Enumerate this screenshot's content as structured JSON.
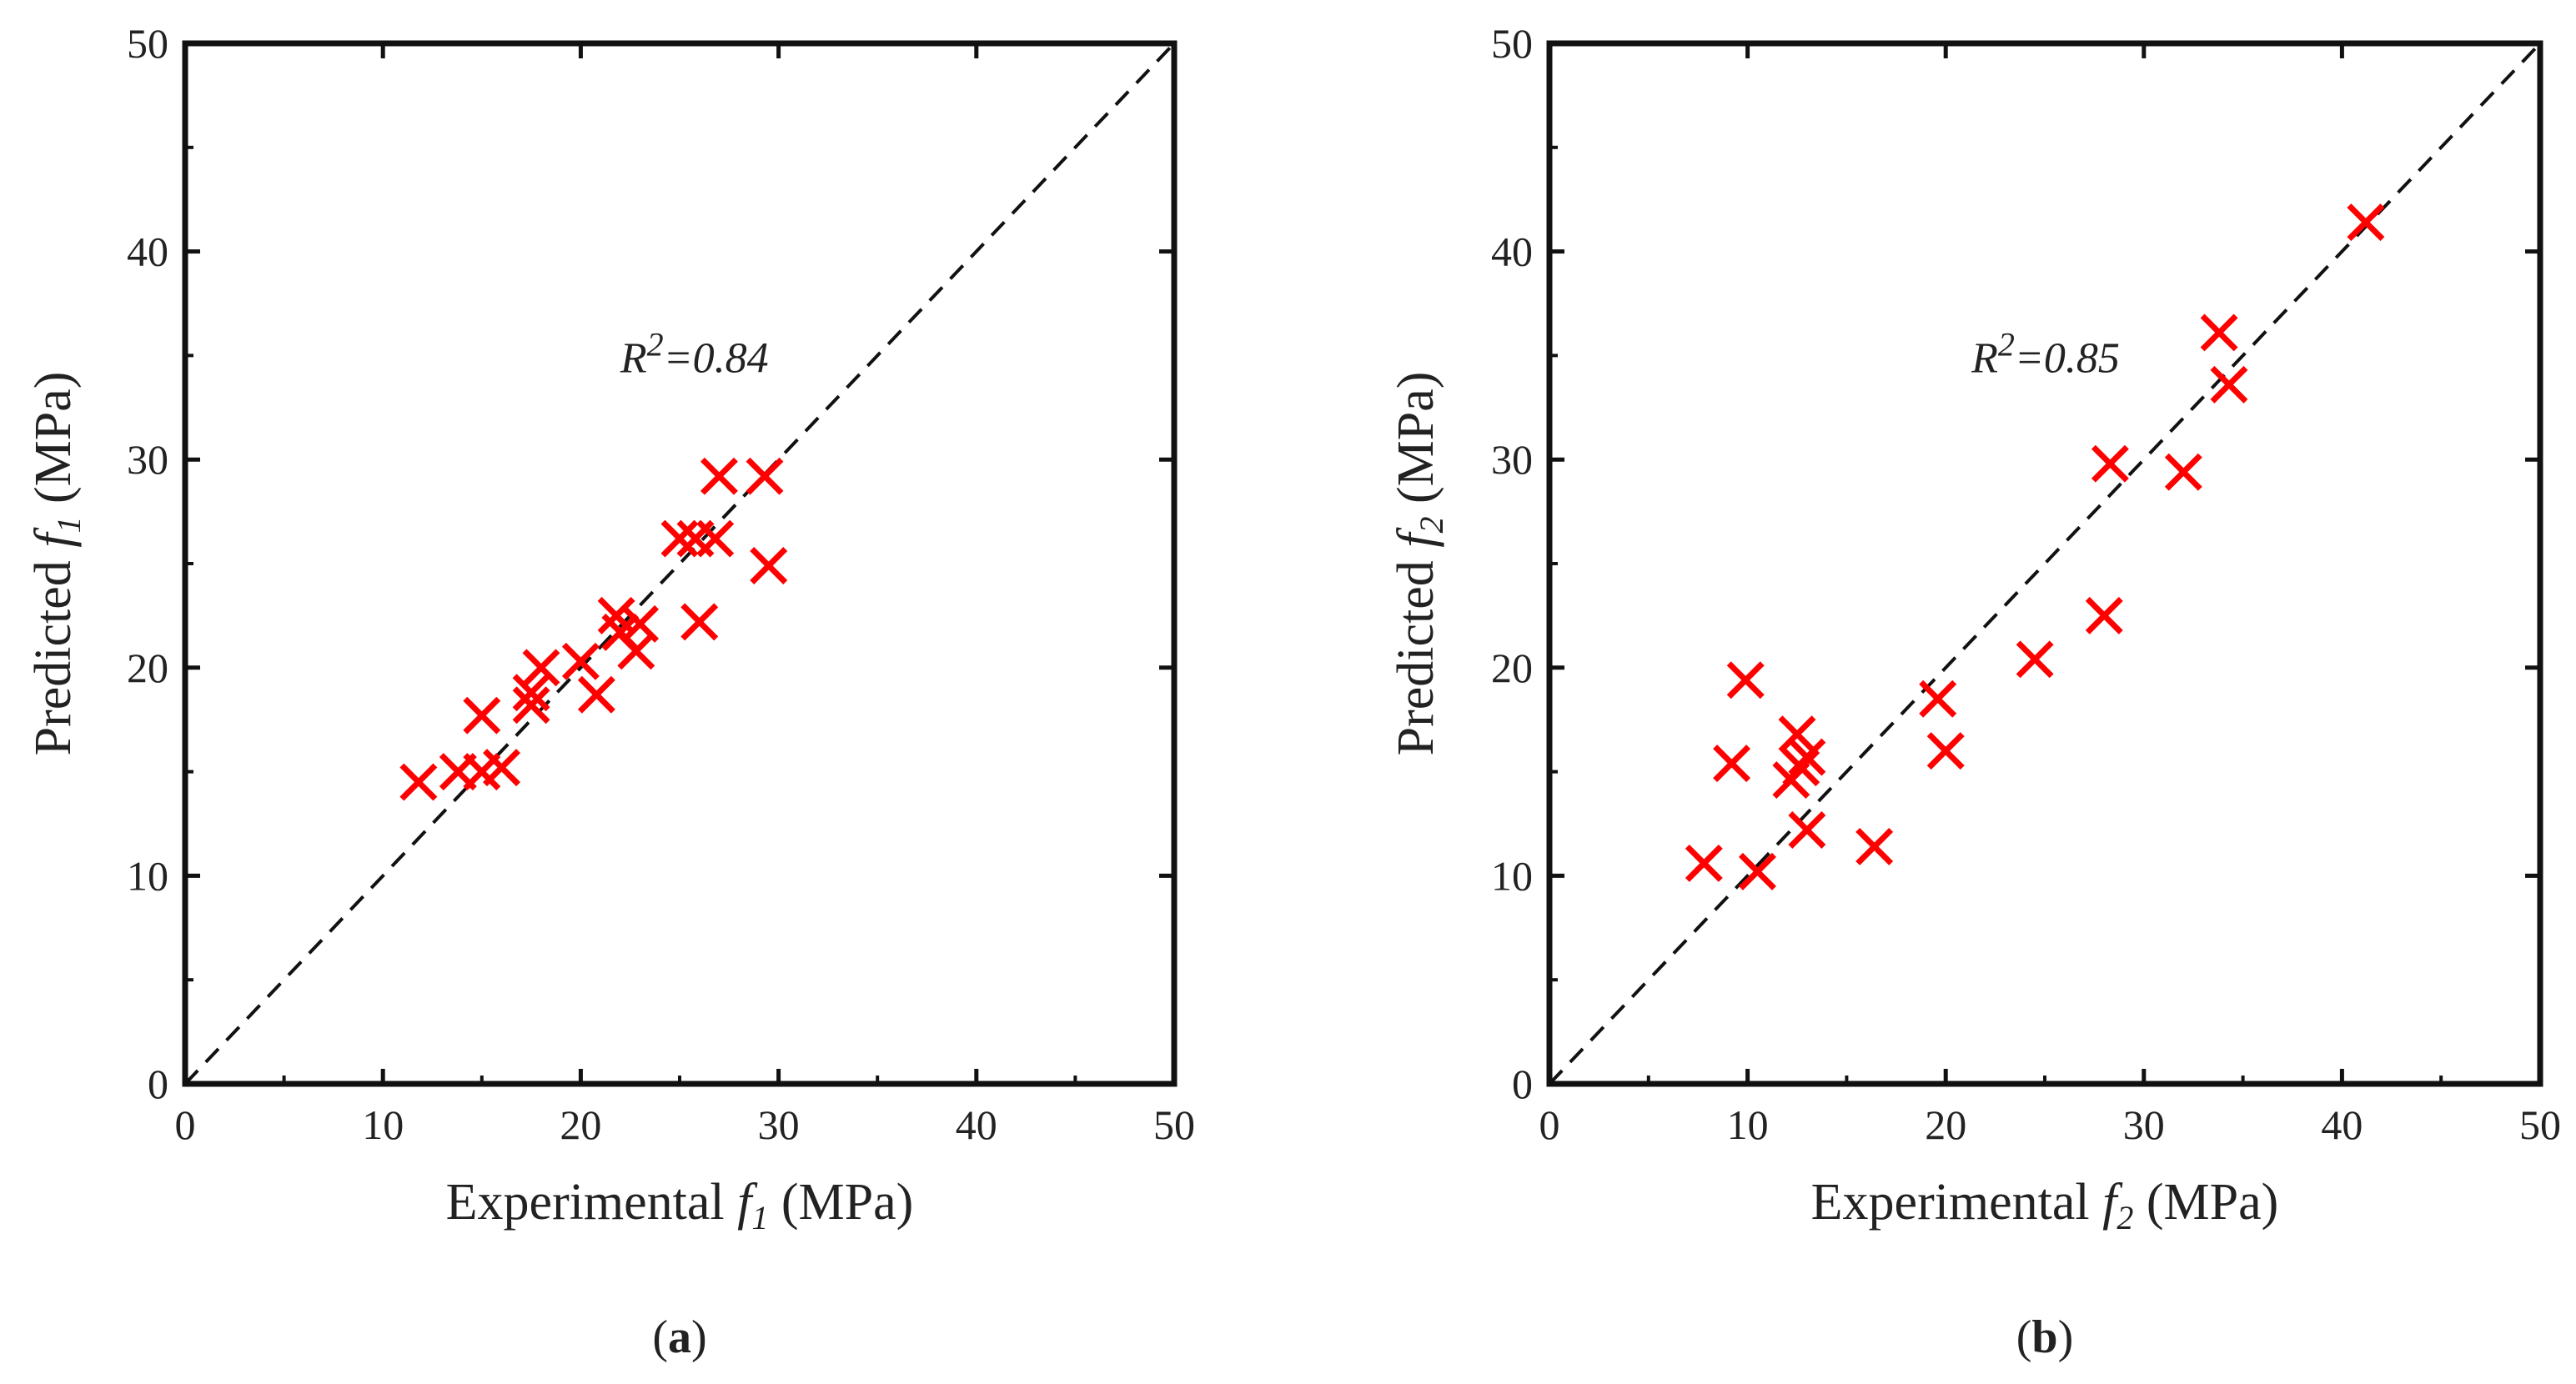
{
  "chart_data": [
    {
      "type": "scatter",
      "id": "a",
      "caption_open": "(",
      "caption_letter": "a",
      "caption_close": ")",
      "xlabel_prefix": "Experimental ",
      "ylabel_prefix": "Predicted ",
      "var_symbol": "f",
      "var_subscript": "1",
      "unit": " (MPa)",
      "xlim": [
        0,
        50
      ],
      "ylim": [
        0,
        50
      ],
      "xticks": [
        0,
        10,
        20,
        30,
        40,
        50
      ],
      "yticks": [
        0,
        10,
        20,
        30,
        40,
        50
      ],
      "r2_symbol": "R",
      "r2_superscript": "2",
      "r2_value": "=0.84",
      "r2_position_data": [
        22.0,
        34.2
      ],
      "reference_line": "y = x (dashed)",
      "marker": "x",
      "marker_color": "#ff0000",
      "points": [
        {
          "x": 11.8,
          "y": 14.5
        },
        {
          "x": 13.8,
          "y": 15.0
        },
        {
          "x": 15.0,
          "y": 17.7
        },
        {
          "x": 15.0,
          "y": 15.0
        },
        {
          "x": 16.0,
          "y": 15.2
        },
        {
          "x": 17.5,
          "y": 18.2
        },
        {
          "x": 17.5,
          "y": 18.8
        },
        {
          "x": 18.0,
          "y": 20.0
        },
        {
          "x": 20.0,
          "y": 20.3
        },
        {
          "x": 20.8,
          "y": 18.7
        },
        {
          "x": 21.8,
          "y": 22.5
        },
        {
          "x": 22.0,
          "y": 21.7
        },
        {
          "x": 22.8,
          "y": 20.8
        },
        {
          "x": 23.0,
          "y": 22.1
        },
        {
          "x": 25.0,
          "y": 26.2
        },
        {
          "x": 25.8,
          "y": 26.2
        },
        {
          "x": 26.0,
          "y": 22.2
        },
        {
          "x": 26.8,
          "y": 26.2
        },
        {
          "x": 27.0,
          "y": 29.2
        },
        {
          "x": 29.3,
          "y": 29.2
        },
        {
          "x": 29.5,
          "y": 24.9
        }
      ]
    },
    {
      "type": "scatter",
      "id": "b",
      "caption_open": "(",
      "caption_letter": "b",
      "caption_close": ")",
      "xlabel_prefix": "Experimental ",
      "ylabel_prefix": "Predicted ",
      "var_symbol": "f",
      "var_subscript": "2",
      "unit": " (MPa)",
      "xlim": [
        0,
        50
      ],
      "ylim": [
        0,
        50
      ],
      "xticks": [
        0,
        10,
        20,
        30,
        40,
        50
      ],
      "yticks": [
        0,
        10,
        20,
        30,
        40,
        50
      ],
      "r2_symbol": "R",
      "r2_superscript": "2",
      "r2_value": "=0.85",
      "r2_position_data": [
        21.3,
        34.2
      ],
      "reference_line": "y = x (dashed)",
      "marker": "x",
      "marker_color": "#ff0000",
      "points": [
        {
          "x": 7.8,
          "y": 10.6
        },
        {
          "x": 9.2,
          "y": 15.4
        },
        {
          "x": 9.9,
          "y": 19.4
        },
        {
          "x": 10.5,
          "y": 10.2
        },
        {
          "x": 12.2,
          "y": 14.6
        },
        {
          "x": 12.5,
          "y": 16.8
        },
        {
          "x": 12.7,
          "y": 15.2
        },
        {
          "x": 13.0,
          "y": 15.7
        },
        {
          "x": 13.0,
          "y": 12.2
        },
        {
          "x": 16.4,
          "y": 11.4
        },
        {
          "x": 19.6,
          "y": 18.5
        },
        {
          "x": 20.0,
          "y": 16.0
        },
        {
          "x": 24.5,
          "y": 20.4
        },
        {
          "x": 28.0,
          "y": 22.5
        },
        {
          "x": 28.3,
          "y": 29.8
        },
        {
          "x": 32.0,
          "y": 29.4
        },
        {
          "x": 33.8,
          "y": 36.1
        },
        {
          "x": 34.3,
          "y": 33.6
        },
        {
          "x": 41.2,
          "y": 41.4
        }
      ]
    }
  ]
}
